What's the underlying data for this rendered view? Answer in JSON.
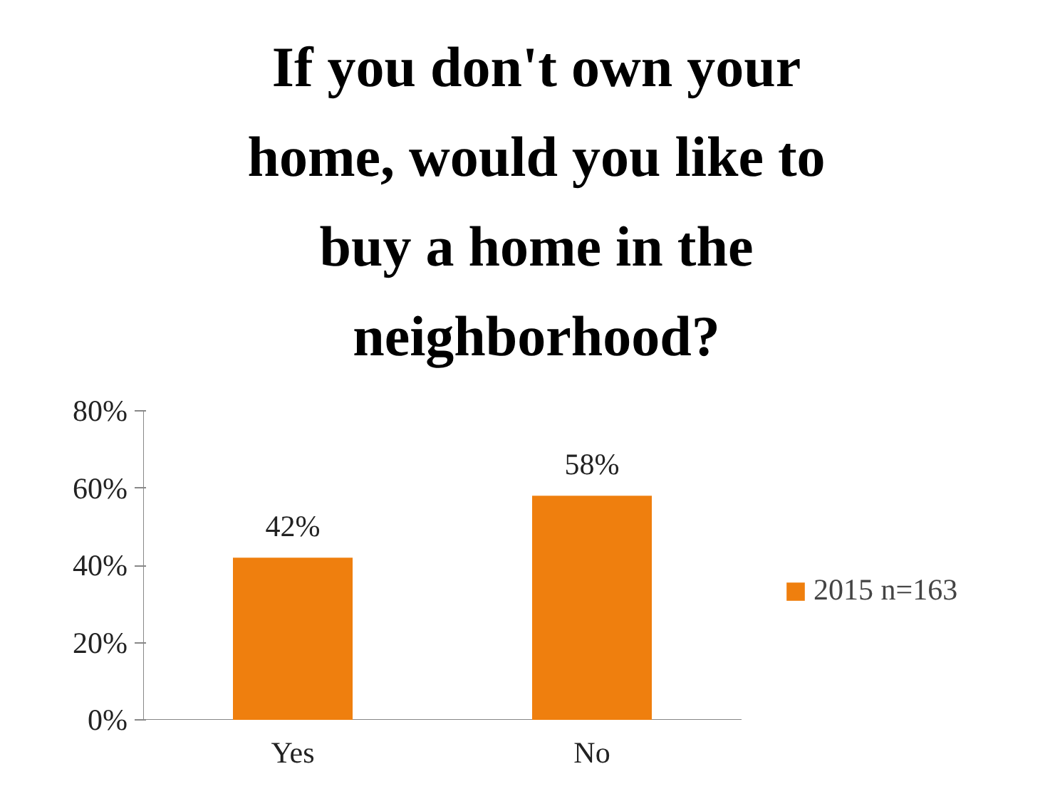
{
  "chart_data": {
    "type": "bar",
    "title": "If you don't own your home, would you like to buy a home in the neighborhood?",
    "categories": [
      "Yes",
      "No"
    ],
    "series": [
      {
        "name": "2015 n=163",
        "color": "#ef7f0e",
        "values": [
          42,
          58
        ]
      }
    ],
    "ylim": [
      0,
      80
    ],
    "yticks": [
      {
        "value": 0,
        "label": "0%"
      },
      {
        "value": 20,
        "label": "20%"
      },
      {
        "value": 40,
        "label": "40%"
      },
      {
        "value": 60,
        "label": "60%"
      },
      {
        "value": 80,
        "label": "80%"
      }
    ],
    "value_labels": [
      "42%",
      "58%"
    ],
    "grid": false,
    "legend": "right"
  }
}
